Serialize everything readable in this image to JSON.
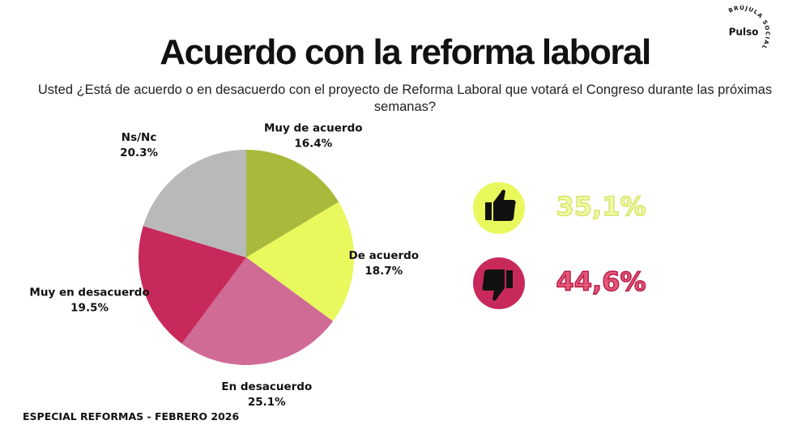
{
  "chart_data": {
    "type": "pie",
    "title": "Acuerdo con la reforma laboral",
    "subtitle": "Usted ¿Está de acuerdo o en desacuerdo con el proyecto de Reforma Laboral que votará el Congreso durante las próximas semanas?",
    "categories": [
      "Muy de acuerdo",
      "De acuerdo",
      "En desacuerdo",
      "Muy en desacuerdo",
      "Ns/Nc"
    ],
    "values": [
      16.4,
      18.7,
      25.1,
      19.5,
      20.3
    ],
    "value_labels": [
      "16.4%",
      "18.7%",
      "25.1%",
      "19.5%",
      "20.3%"
    ],
    "colors": [
      "#a9b93c",
      "#e9f85c",
      "#d06b95",
      "#c8295b",
      "#b9b9b9"
    ],
    "summary": {
      "agree": "35,1%",
      "disagree": "44,6%"
    },
    "footer": "ESPECIAL REFORMAS - FEBRERO 2026",
    "logo": {
      "brand": "Pulso",
      "ring": "BRÚJULA SOCIAL"
    }
  }
}
